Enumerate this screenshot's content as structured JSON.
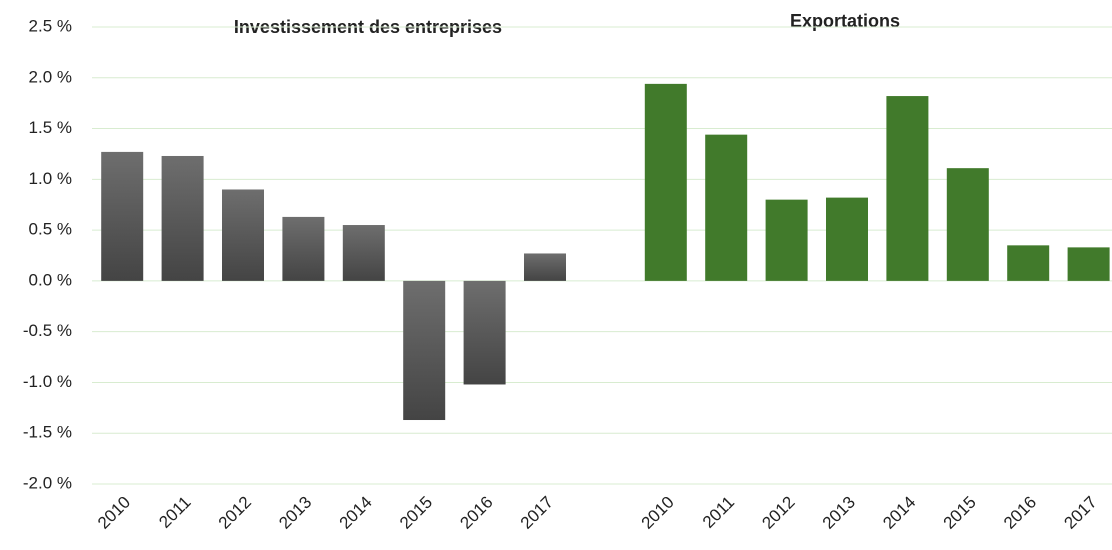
{
  "chart_data": {
    "type": "bar",
    "ylim": [
      -2.0,
      2.5
    ],
    "yticks": [
      {
        "value": -2.0,
        "label": "-2.0 %"
      },
      {
        "value": -1.5,
        "label": "-1.5 %"
      },
      {
        "value": -1.0,
        "label": "-1.0 %"
      },
      {
        "value": -0.5,
        "label": "-0.5 %"
      },
      {
        "value": 0.0,
        "label": "0.0 %"
      },
      {
        "value": 0.5,
        "label": "0.5 %"
      },
      {
        "value": 1.0,
        "label": "1.0 %"
      },
      {
        "value": 1.5,
        "label": "1.5 %"
      },
      {
        "value": 2.0,
        "label": "2.0 %"
      },
      {
        "value": 2.5,
        "label": "2.5 %"
      }
    ],
    "grid": true,
    "groups": [
      {
        "title": "Investissement des entreprises",
        "color": "#5b5b5b",
        "categories": [
          "2010",
          "2011",
          "2012",
          "2013",
          "2014",
          "2015",
          "2016",
          "2017"
        ],
        "values": [
          1.27,
          1.23,
          0.9,
          0.63,
          0.55,
          -1.37,
          -1.02,
          0.27
        ]
      },
      {
        "title": "Exportations",
        "color": "#417a2b",
        "categories": [
          "2010",
          "2011",
          "2012",
          "2013",
          "2014",
          "2015",
          "2016",
          "2017"
        ],
        "values": [
          1.94,
          1.44,
          0.8,
          0.82,
          1.82,
          1.11,
          0.35,
          0.33
        ]
      }
    ]
  }
}
